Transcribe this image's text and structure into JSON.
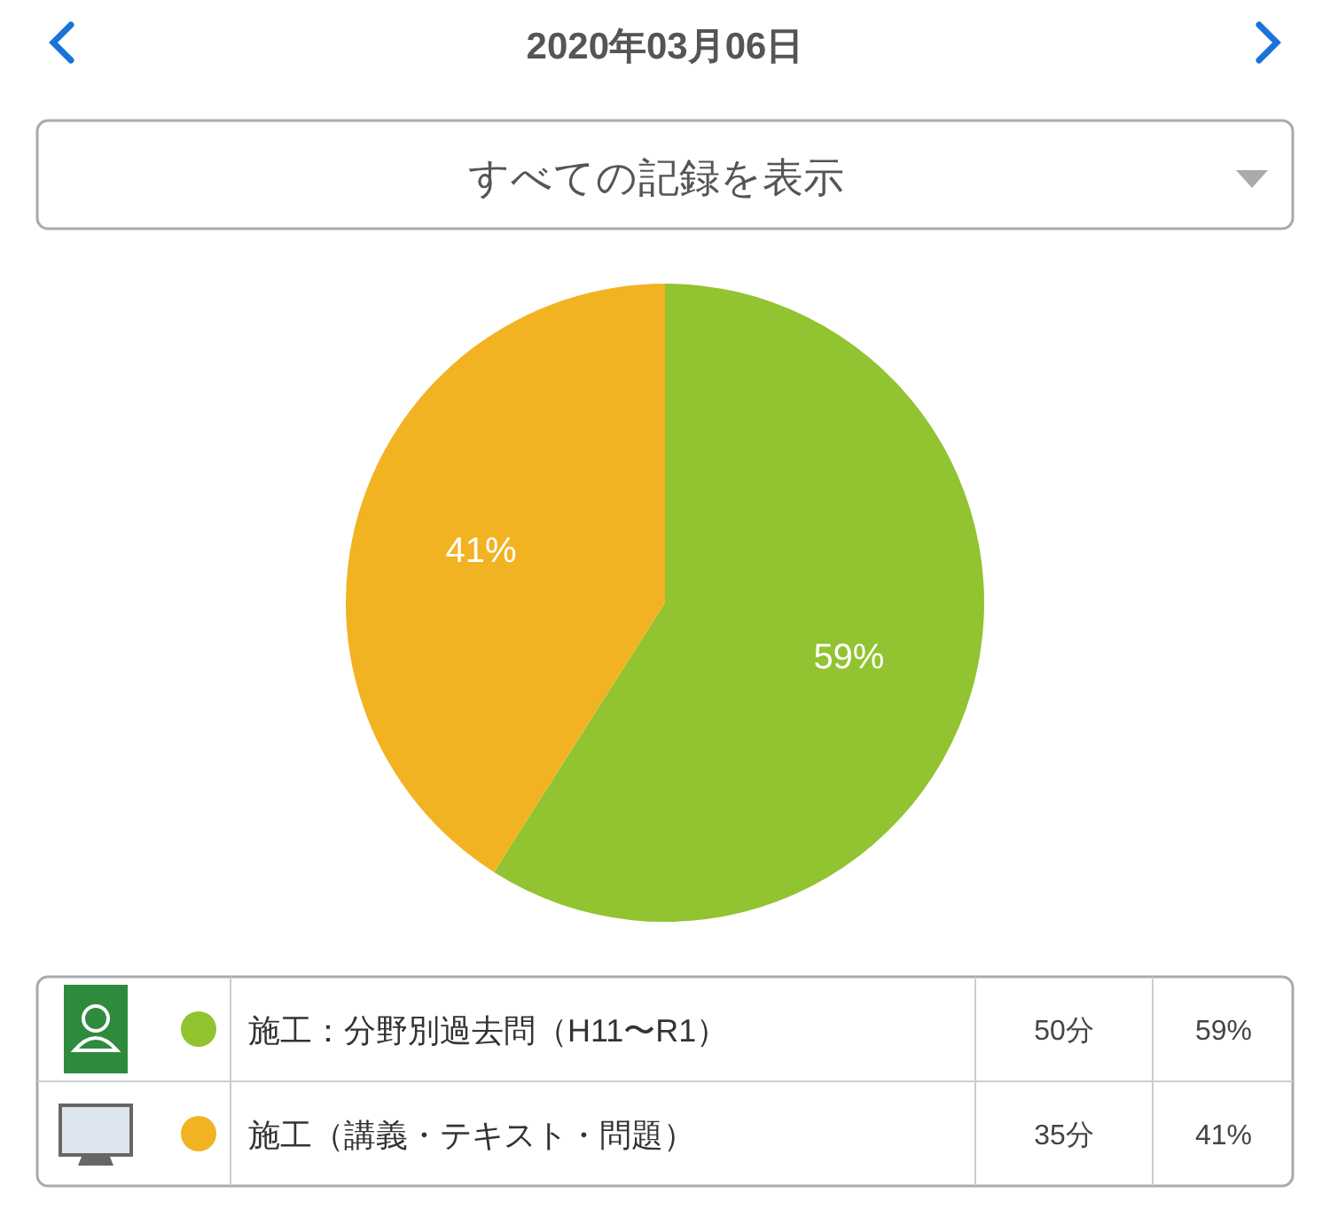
{
  "chart_data": {
    "type": "pie",
    "title": "2020年03月06日",
    "subtitle": "すべての記録を表示",
    "categories": [
      "施工：分野別過去問（H11〜R1）",
      "施工（講義・テキスト・問題）"
    ],
    "values": [
      59,
      41
    ],
    "colors": [
      "#92c330",
      "#f2b322"
    ],
    "value_labels": [
      "59%",
      "41%"
    ],
    "legend": "bottom",
    "annotations": [
      "50分",
      "35分"
    ]
  }
}
